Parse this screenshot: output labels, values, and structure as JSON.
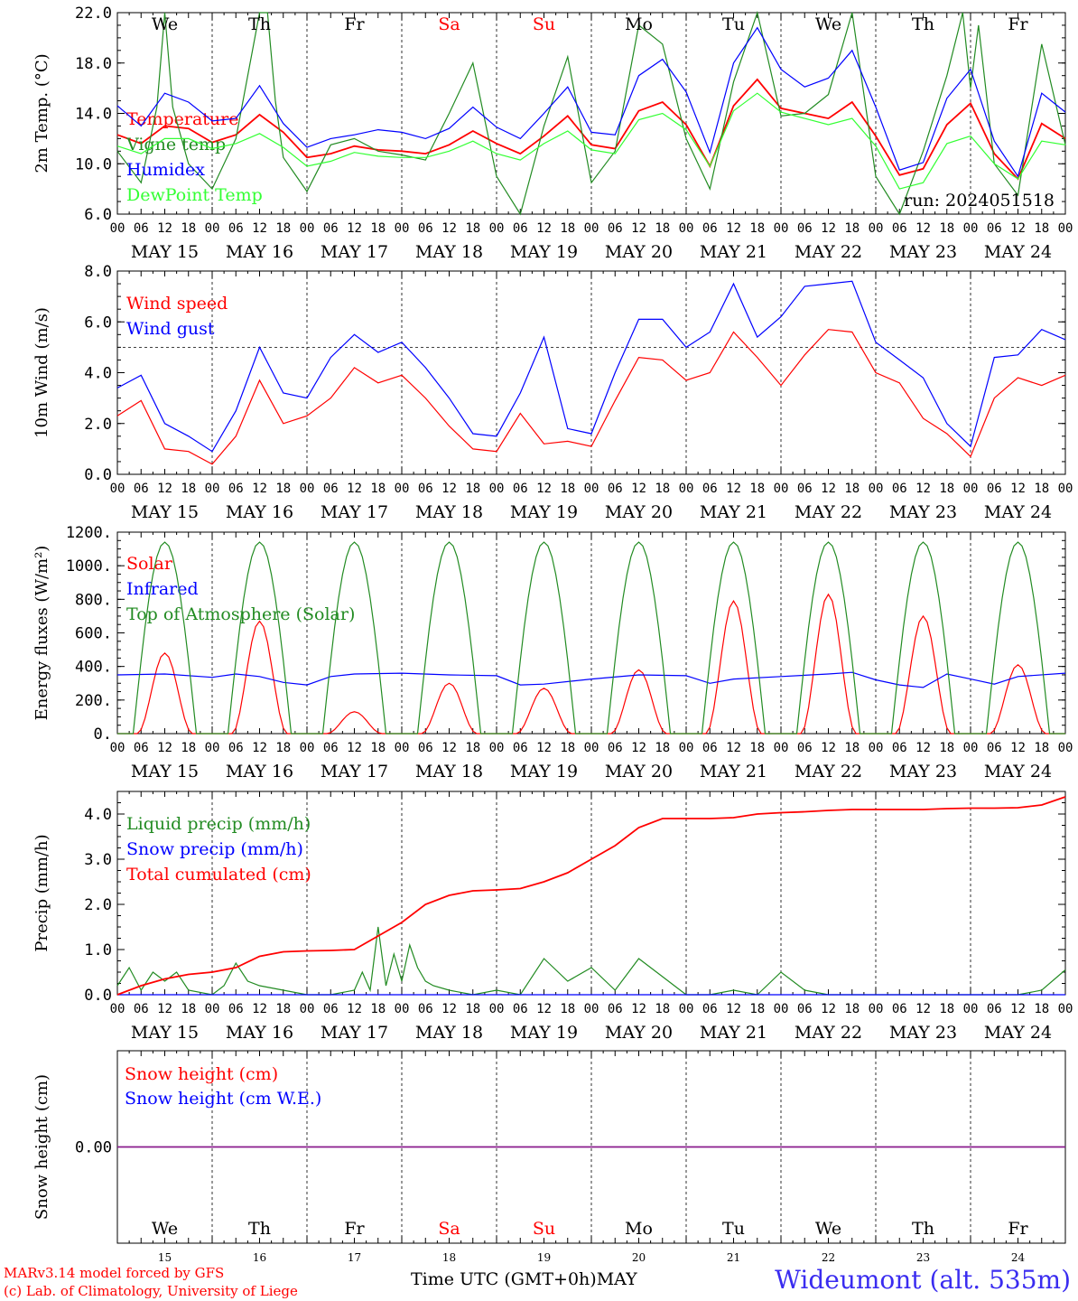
{
  "run_label": "run: 2024051518",
  "footer": {
    "model": "MARv3.14 model forced by GFS",
    "lab": "(c) Lab. of Climatology, University of Liege",
    "time_label": "Time UTC (GMT+0h)",
    "month": "MAY",
    "station": "Wideumont (alt. 535m)"
  },
  "days": {
    "names": [
      "We",
      "Th",
      "Fr",
      "Sa",
      "Su",
      "Mo",
      "Tu",
      "We",
      "Th",
      "Fr"
    ],
    "weekend_color": "#ff0000",
    "dates": [
      "MAY 15",
      "MAY 16",
      "MAY 17",
      "MAY 18",
      "MAY 19",
      "MAY 20",
      "MAY 21",
      "MAY 22",
      "MAY 23",
      "MAY 24"
    ],
    "numbers": [
      "15",
      "16",
      "17",
      "18",
      "19",
      "20",
      "21",
      "22",
      "23",
      "24"
    ]
  },
  "hour_ticks": [
    "00",
    "06",
    "12",
    "18"
  ],
  "chart_data": [
    {
      "type": "line",
      "ylabel": "2m Temp. (°C)",
      "ylim": [
        6,
        22
      ],
      "yticks": [
        "6.0",
        "10.0",
        "14.0",
        "18.0",
        "22.0"
      ],
      "legend_position": "top-left",
      "x_unit": "hours since 2024-05-15 00 UTC",
      "series": [
        {
          "name": "Temperature",
          "color": "#ff0000",
          "x": [
            0,
            6,
            12,
            18,
            24,
            30,
            36,
            42,
            48,
            54,
            60,
            66,
            72,
            78,
            84,
            90,
            96,
            102,
            108,
            114,
            120,
            126,
            132,
            138,
            144,
            150,
            156,
            162,
            168,
            174,
            180,
            186,
            192,
            198,
            204,
            210,
            216,
            222,
            228,
            234,
            240
          ],
          "y": [
            12.3,
            11.6,
            13.0,
            12.8,
            11.7,
            12.3,
            13.9,
            12.5,
            10.5,
            10.8,
            11.4,
            11.1,
            11.0,
            10.8,
            11.5,
            12.6,
            11.6,
            10.8,
            12.2,
            13.8,
            11.5,
            11.2,
            14.2,
            14.9,
            13.1,
            9.8,
            14.6,
            16.7,
            14.4,
            14.0,
            13.6,
            14.9,
            12.2,
            9.1,
            9.6,
            13.1,
            14.8,
            10.8,
            8.8,
            13.2,
            12.0
          ]
        },
        {
          "name": "Vigne temp",
          "color": "#228b22",
          "x": [
            0,
            6,
            10,
            12,
            14,
            18,
            24,
            30,
            36,
            38,
            40,
            42,
            48,
            54,
            60,
            66,
            72,
            78,
            84,
            90,
            96,
            102,
            108,
            114,
            120,
            126,
            132,
            138,
            144,
            150,
            156,
            162,
            168,
            174,
            180,
            186,
            192,
            198,
            204,
            210,
            214,
            216,
            218,
            222,
            228,
            234,
            240
          ],
          "y": [
            11.0,
            8.5,
            14.5,
            22.0,
            14.5,
            10.0,
            8.0,
            12.0,
            22.0,
            22.0,
            15.0,
            10.5,
            7.8,
            11.5,
            12.0,
            11.0,
            10.7,
            10.3,
            14.0,
            18.0,
            9.0,
            6.0,
            13.0,
            18.5,
            8.5,
            11.0,
            21.0,
            19.5,
            12.0,
            8.0,
            16.5,
            22.0,
            13.8,
            14.0,
            15.5,
            22.0,
            9.0,
            6.0,
            11.0,
            17.0,
            22.0,
            16.0,
            21.0,
            10.0,
            7.5,
            19.5,
            11.5
          ]
        },
        {
          "name": "Humidex",
          "color": "#0000ff",
          "x": [
            0,
            6,
            12,
            18,
            24,
            30,
            36,
            42,
            48,
            54,
            60,
            66,
            72,
            78,
            84,
            90,
            96,
            102,
            108,
            114,
            120,
            126,
            132,
            138,
            144,
            150,
            156,
            162,
            168,
            174,
            180,
            186,
            192,
            198,
            204,
            210,
            216,
            222,
            228,
            234,
            240
          ],
          "y": [
            14.6,
            13.0,
            15.6,
            14.9,
            13.4,
            13.6,
            16.2,
            13.2,
            11.3,
            12.0,
            12.3,
            12.7,
            12.5,
            12.0,
            12.8,
            14.5,
            12.9,
            12.0,
            14.0,
            16.1,
            12.5,
            12.3,
            17.0,
            18.3,
            15.7,
            10.9,
            18.0,
            20.8,
            17.5,
            16.1,
            16.8,
            19.0,
            14.5,
            9.5,
            10.1,
            15.2,
            17.5,
            11.8,
            9.0,
            15.6,
            14.1
          ]
        },
        {
          "name": "DewPoint Temp",
          "color": "#33ff33",
          "x": [
            0,
            6,
            12,
            18,
            24,
            30,
            36,
            42,
            48,
            54,
            60,
            66,
            72,
            78,
            84,
            90,
            96,
            102,
            108,
            114,
            120,
            126,
            132,
            138,
            144,
            150,
            156,
            162,
            168,
            174,
            180,
            186,
            192,
            198,
            204,
            210,
            216,
            222,
            228,
            234,
            240
          ],
          "y": [
            11.4,
            10.8,
            12.0,
            12.0,
            11.2,
            11.6,
            12.4,
            11.3,
            9.8,
            10.2,
            10.9,
            10.6,
            10.5,
            10.5,
            11.0,
            11.8,
            10.8,
            10.3,
            11.6,
            12.6,
            11.1,
            10.8,
            13.5,
            14.0,
            12.7,
            9.8,
            14.2,
            15.6,
            14.1,
            13.6,
            13.1,
            13.6,
            11.4,
            8.0,
            8.5,
            11.6,
            12.2,
            10.0,
            8.8,
            11.8,
            11.5
          ]
        }
      ]
    },
    {
      "type": "line",
      "ylabel": "10m Wind (m/s)",
      "ylim": [
        0,
        8
      ],
      "yticks": [
        "0.0",
        "2.0",
        "4.0",
        "6.0",
        "8.0"
      ],
      "reference_line": 5.0,
      "legend_position": "top-left",
      "series": [
        {
          "name": "Wind speed",
          "color": "#ff0000",
          "x": [
            0,
            6,
            12,
            18,
            24,
            30,
            36,
            42,
            48,
            54,
            60,
            66,
            72,
            78,
            84,
            90,
            96,
            102,
            108,
            114,
            120,
            126,
            132,
            138,
            144,
            150,
            156,
            162,
            168,
            174,
            180,
            186,
            192,
            198,
            204,
            210,
            216,
            222,
            228,
            234,
            240
          ],
          "y": [
            2.3,
            2.9,
            1.0,
            0.9,
            0.4,
            1.5,
            3.7,
            2.0,
            2.3,
            3.0,
            4.2,
            3.6,
            3.9,
            3.0,
            1.9,
            1.0,
            0.9,
            2.4,
            1.2,
            1.3,
            1.1,
            2.9,
            4.6,
            4.5,
            3.7,
            4.0,
            5.6,
            4.6,
            3.5,
            4.7,
            5.7,
            5.6,
            4.0,
            3.6,
            2.2,
            1.6,
            0.7,
            3.0,
            3.8,
            3.5,
            3.9
          ]
        },
        {
          "name": "Wind gust",
          "color": "#0000ff",
          "x": [
            0,
            6,
            12,
            18,
            24,
            30,
            36,
            42,
            48,
            54,
            60,
            66,
            72,
            78,
            84,
            90,
            96,
            102,
            108,
            114,
            120,
            126,
            132,
            138,
            144,
            150,
            156,
            162,
            168,
            174,
            180,
            186,
            192,
            198,
            204,
            210,
            216,
            222,
            228,
            234,
            240
          ],
          "y": [
            3.4,
            3.9,
            2.0,
            1.5,
            0.9,
            2.5,
            5.0,
            3.2,
            3.0,
            4.6,
            5.5,
            4.8,
            5.2,
            4.2,
            3.0,
            1.6,
            1.5,
            3.2,
            5.4,
            1.8,
            1.6,
            4.0,
            6.1,
            6.1,
            5.0,
            5.6,
            7.5,
            5.4,
            6.2,
            7.4,
            7.5,
            7.6,
            5.2,
            4.5,
            3.8,
            2.0,
            1.1,
            4.6,
            4.7,
            5.7,
            5.3
          ]
        }
      ]
    },
    {
      "type": "line",
      "ylabel": "Energy fluxes (W/m²)",
      "ylim": [
        0,
        1200
      ],
      "yticks": [
        "0.",
        "200.",
        "400.",
        "600.",
        "800.",
        "1000.",
        "1200."
      ],
      "legend_position": "top-left",
      "solar_peaks": [
        480,
        670,
        130,
        300,
        270,
        380,
        790,
        830,
        700,
        410
      ],
      "toa_peak": 1140,
      "series": [
        {
          "name": "Solar",
          "color": "#ff0000"
        },
        {
          "name": "Infrared",
          "color": "#0000ff",
          "x": [
            0,
            12,
            24,
            30,
            36,
            42,
            48,
            54,
            60,
            72,
            84,
            96,
            102,
            108,
            120,
            132,
            144,
            150,
            156,
            168,
            180,
            186,
            192,
            198,
            204,
            210,
            216,
            222,
            228,
            240
          ],
          "y": [
            350,
            355,
            335,
            355,
            340,
            305,
            290,
            340,
            355,
            360,
            350,
            345,
            290,
            295,
            325,
            350,
            345,
            300,
            325,
            340,
            355,
            365,
            320,
            290,
            275,
            355,
            325,
            295,
            340,
            360
          ]
        },
        {
          "name": "Top of Atmosphere (Solar)",
          "color": "#228b22"
        }
      ]
    },
    {
      "type": "line",
      "ylabel": "Precip (mm/h)",
      "ylim": [
        0,
        4.5
      ],
      "yticks": [
        "0.0",
        "1.0",
        "2.0",
        "3.0",
        "4.0"
      ],
      "legend_position": "top-left",
      "series": [
        {
          "name": "Liquid precip (mm/h)",
          "color": "#228b22",
          "x": [
            0,
            3,
            6,
            9,
            12,
            15,
            18,
            24,
            27,
            30,
            33,
            36,
            42,
            48,
            54,
            60,
            62,
            64,
            66,
            68,
            70,
            72,
            74,
            76,
            78,
            80,
            84,
            90,
            96,
            102,
            108,
            114,
            120,
            126,
            132,
            138,
            144,
            150,
            156,
            162,
            168,
            174,
            180,
            186,
            192,
            198,
            204,
            210,
            216,
            222,
            228,
            234,
            240
          ],
          "y": [
            0.2,
            0.6,
            0.1,
            0.5,
            0.3,
            0.5,
            0.1,
            0.0,
            0.2,
            0.7,
            0.3,
            0.2,
            0.1,
            0.0,
            0.0,
            0.1,
            0.5,
            0.1,
            1.5,
            0.2,
            0.9,
            0.3,
            1.1,
            0.6,
            0.3,
            0.2,
            0.1,
            0.0,
            0.1,
            0.0,
            0.8,
            0.3,
            0.6,
            0.1,
            0.8,
            0.4,
            0.0,
            0.0,
            0.1,
            0.0,
            0.5,
            0.1,
            0.0,
            0.0,
            0.0,
            0.0,
            0.0,
            0.0,
            0.0,
            0.0,
            0.0,
            0.1,
            0.55
          ]
        },
        {
          "name": "Snow precip (mm/h)",
          "color": "#0000ff",
          "x": [
            0,
            240
          ],
          "y": [
            0,
            0
          ]
        },
        {
          "name": "Total cumulated (cm)",
          "color": "#ff0000",
          "x": [
            0,
            6,
            12,
            18,
            24,
            30,
            36,
            42,
            48,
            54,
            60,
            66,
            72,
            78,
            84,
            90,
            96,
            102,
            108,
            114,
            120,
            126,
            132,
            138,
            144,
            150,
            156,
            162,
            168,
            174,
            180,
            186,
            192,
            198,
            204,
            210,
            216,
            222,
            228,
            234,
            240
          ],
          "y": [
            0.0,
            0.2,
            0.35,
            0.45,
            0.5,
            0.6,
            0.85,
            0.95,
            0.97,
            0.98,
            1.0,
            1.3,
            1.6,
            2.0,
            2.2,
            2.3,
            2.32,
            2.35,
            2.5,
            2.7,
            3.0,
            3.3,
            3.7,
            3.9,
            3.9,
            3.9,
            3.92,
            4.0,
            4.03,
            4.05,
            4.08,
            4.1,
            4.1,
            4.1,
            4.1,
            4.12,
            4.13,
            4.13,
            4.14,
            4.2,
            4.38
          ]
        }
      ]
    },
    {
      "type": "line",
      "ylabel": "Snow height (cm)",
      "ylim": [
        -1,
        1
      ],
      "yticks": [
        "0.00"
      ],
      "legend_position": "top-left",
      "series": [
        {
          "name": "Snow height (cm)",
          "color": "#ff0000",
          "x": [
            0,
            240
          ],
          "y": [
            0,
            0
          ]
        },
        {
          "name": "Snow height (cm W.E.)",
          "color": "#0000ff",
          "x": [
            0,
            240
          ],
          "y": [
            0,
            0
          ]
        }
      ]
    }
  ]
}
